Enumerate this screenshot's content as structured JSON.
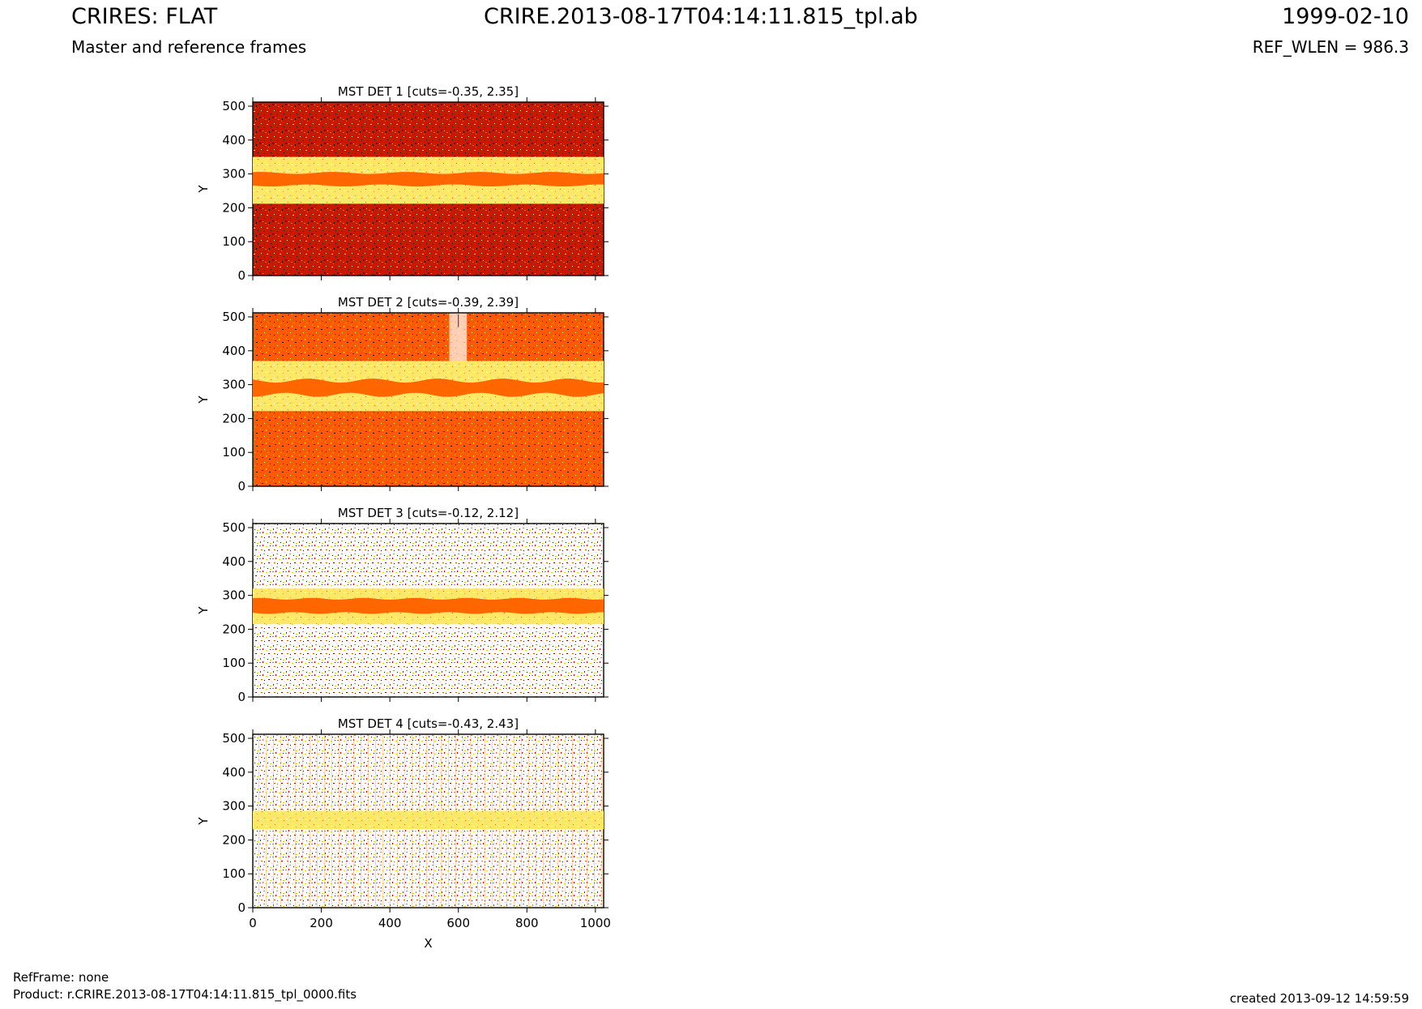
{
  "header": {
    "left_title": "CRIRES: FLAT",
    "left_subtitle": "Master and reference frames",
    "center_title": "CRIRE.2013-08-17T04:14:11.815_tpl.ab",
    "right_title": "1999-02-10",
    "right_subtitle": "REF_WLEN = 986.3"
  },
  "footer": {
    "refframe": "RefFrame: none",
    "product": "Product: r.CRIRE.2013-08-17T04:14:11.815_tpl_0000.fits",
    "created": "created 2013-09-12 14:59:59"
  },
  "colors": {
    "background": "#ffffff",
    "dark_red": "#7a0000",
    "red": "#b60000",
    "orange_red": "#e23200",
    "orange": "#ff6600",
    "yellow": "#ffd000",
    "pale_yellow": "#fff4a0",
    "white": "#ffffff"
  },
  "chart_data": [
    {
      "type": "heatmap",
      "title": "MST DET 1 [cuts=-0.35, 2.35]",
      "xlabel": "",
      "ylabel": "Y",
      "xlim": [
        0,
        1024
      ],
      "ylim": [
        0,
        512
      ],
      "x_ticks": [],
      "y_ticks": [
        0,
        100,
        200,
        300,
        400,
        500
      ],
      "cuts": [
        -0.35,
        2.35
      ],
      "features": [
        {
          "name": "saturated_band",
          "y_range": [
            265,
            305
          ],
          "color": "orange"
        },
        {
          "name": "bright_region",
          "y_range": [
            220,
            340
          ],
          "color": "white"
        },
        {
          "name": "upper_noise",
          "y_range": [
            340,
            512
          ],
          "color": "red"
        },
        {
          "name": "lower_noise",
          "y_range": [
            0,
            220
          ],
          "color": "red"
        }
      ]
    },
    {
      "type": "heatmap",
      "title": "MST DET 2 [cuts=-0.39, 2.39]",
      "xlabel": "",
      "ylabel": "Y",
      "xlim": [
        0,
        1024
      ],
      "ylim": [
        0,
        512
      ],
      "x_ticks": [],
      "y_ticks": [
        0,
        100,
        200,
        300,
        400,
        500
      ],
      "cuts": [
        -0.39,
        2.39
      ],
      "features": [
        {
          "name": "saturated_band",
          "y_range": [
            270,
            310
          ],
          "color": "orange"
        },
        {
          "name": "bright_region",
          "y_range": [
            230,
            360
          ],
          "color": "white"
        },
        {
          "name": "upper_noise",
          "y_range": [
            360,
            512
          ],
          "color": "red"
        },
        {
          "name": "lower_noise",
          "y_range": [
            0,
            230
          ],
          "color": "orange-red"
        }
      ]
    },
    {
      "type": "heatmap",
      "title": "MST DET 3 [cuts=-0.12, 2.12]",
      "xlabel": "",
      "ylabel": "Y",
      "xlim": [
        0,
        1024
      ],
      "ylim": [
        0,
        512
      ],
      "x_ticks": [],
      "y_ticks": [
        0,
        100,
        200,
        300,
        400,
        500
      ],
      "cuts": [
        -0.12,
        2.12
      ],
      "features": [
        {
          "name": "saturated_band",
          "y_range": [
            245,
            290
          ],
          "color": "orange"
        },
        {
          "name": "bright_region",
          "y_range": [
            215,
            320
          ],
          "color": "white"
        },
        {
          "name": "upper_noise",
          "y_range": [
            320,
            512
          ],
          "color": "mixed"
        },
        {
          "name": "lower_noise",
          "y_range": [
            0,
            215
          ],
          "color": "mixed"
        }
      ]
    },
    {
      "type": "heatmap",
      "title": "MST DET 4 [cuts=-0.43, 2.43]",
      "xlabel": "X",
      "ylabel": "Y",
      "xlim": [
        0,
        1024
      ],
      "ylim": [
        0,
        512
      ],
      "x_ticks": [
        0,
        200,
        400,
        600,
        800,
        1000
      ],
      "y_ticks": [
        0,
        100,
        200,
        300,
        400,
        500
      ],
      "cuts": [
        -0.43,
        2.43
      ],
      "features": [
        {
          "name": "saturated_band",
          "y_range": [
            245,
            278
          ],
          "color": "orange"
        },
        {
          "name": "bright_region",
          "y_range": [
            230,
            285
          ],
          "color": "white"
        },
        {
          "name": "upper_noise",
          "y_range": [
            285,
            512
          ],
          "color": "mixed"
        },
        {
          "name": "lower_noise",
          "y_range": [
            0,
            230
          ],
          "color": "mixed"
        }
      ]
    }
  ]
}
